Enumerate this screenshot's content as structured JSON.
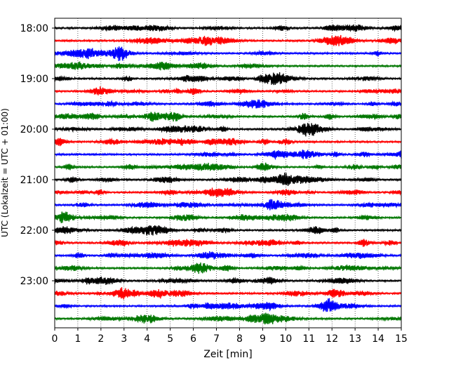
{
  "chart_data": {
    "type": "line",
    "xlabel": "Zeit  [min]",
    "ylabel": "UTC (Lokalzeit = UTC + 01:00)",
    "xlim": [
      0,
      15
    ],
    "x_ticks": [
      "0",
      "1",
      "2",
      "3",
      "4",
      "5",
      "6",
      "7",
      "8",
      "9",
      "10",
      "11",
      "12",
      "13",
      "14",
      "15"
    ],
    "y_ticks": [
      "18:00",
      "19:00",
      "20:00",
      "21:00",
      "22:00",
      "23:00"
    ],
    "grid": "vertical dotted",
    "trace_colors": [
      "#000000",
      "#ff0000",
      "#0000ff",
      "#007700"
    ],
    "rows": [
      {
        "start": "18:00",
        "color": "#000000"
      },
      {
        "start": "18:15",
        "color": "#ff0000"
      },
      {
        "start": "18:30",
        "color": "#0000ff"
      },
      {
        "start": "18:45",
        "color": "#007700"
      },
      {
        "start": "19:00",
        "color": "#000000"
      },
      {
        "start": "19:15",
        "color": "#ff0000"
      },
      {
        "start": "19:30",
        "color": "#0000ff"
      },
      {
        "start": "19:45",
        "color": "#007700"
      },
      {
        "start": "20:00",
        "color": "#000000"
      },
      {
        "start": "20:15",
        "color": "#ff0000"
      },
      {
        "start": "20:30",
        "color": "#0000ff"
      },
      {
        "start": "20:45",
        "color": "#007700"
      },
      {
        "start": "21:00",
        "color": "#000000"
      },
      {
        "start": "21:15",
        "color": "#ff0000"
      },
      {
        "start": "21:30",
        "color": "#0000ff"
      },
      {
        "start": "21:45",
        "color": "#007700"
      },
      {
        "start": "22:00",
        "color": "#000000"
      },
      {
        "start": "22:15",
        "color": "#ff0000"
      },
      {
        "start": "22:30",
        "color": "#0000ff"
      },
      {
        "start": "22:45",
        "color": "#007700"
      },
      {
        "start": "23:00",
        "color": "#000000"
      },
      {
        "start": "23:15",
        "color": "#ff0000"
      },
      {
        "start": "23:30",
        "color": "#0000ff"
      },
      {
        "start": "23:45",
        "color": "#007700"
      }
    ]
  }
}
